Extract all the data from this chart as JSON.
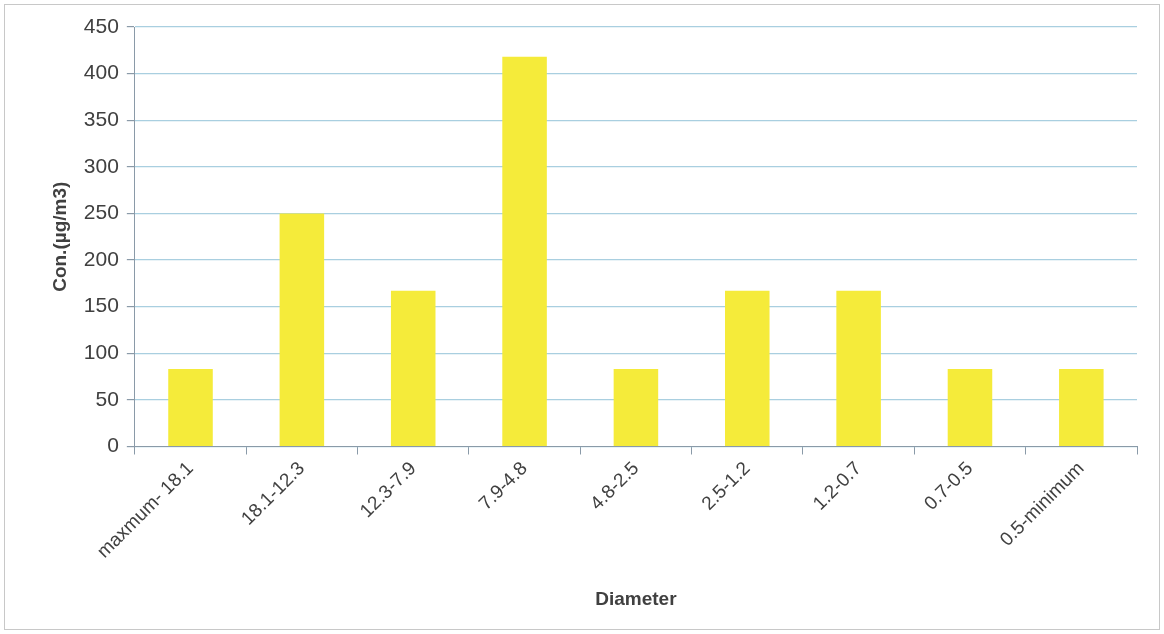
{
  "chart_data": {
    "type": "bar",
    "categories": [
      "maxmum- 18.1",
      "18.1-12.3",
      "12.3-7.9",
      "7.9-4.8",
      "4.8-2.5",
      "2.5-1.2",
      "1.2-0.7",
      "0.7-0.5",
      "0.5-minimum"
    ],
    "values": [
      83,
      250,
      167,
      418,
      83,
      167,
      167,
      83,
      83
    ],
    "color": "#f5eb3a",
    "xlabel": "Diameter",
    "ylabel": "Con.(µg/m3)",
    "ylim": [
      0,
      450
    ],
    "yticks": [
      0,
      50,
      100,
      150,
      200,
      250,
      300,
      350,
      400,
      450
    ],
    "grid": "y",
    "legend": false
  }
}
